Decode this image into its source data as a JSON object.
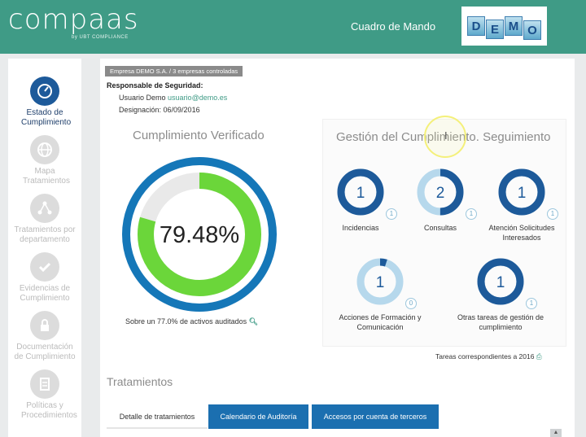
{
  "header": {
    "logo": "compaas",
    "logo_sub": "by UBT COMPLIANCE",
    "title": "Cuadro de Mando",
    "demo_letters": [
      "D",
      "E",
      "M",
      "O"
    ]
  },
  "sidebar": {
    "items": [
      {
        "label": "Estado de Cumplimiento",
        "icon": "gauge-icon",
        "active": true
      },
      {
        "label": "Mapa Tratamientos",
        "icon": "globe-icon",
        "active": false
      },
      {
        "label": "Tratamientos por departamento",
        "icon": "network-icon",
        "active": false
      },
      {
        "label": "Evidencias de Cumplimiento",
        "icon": "check-badge-icon",
        "active": false
      },
      {
        "label": "Documentación de Cumplimiento",
        "icon": "lock-icon",
        "active": false
      },
      {
        "label": "Políticas y Procedimientos",
        "icon": "document-icon",
        "active": false
      }
    ]
  },
  "main": {
    "company_tag": "Empresa DEMO S.A. / 3 empresas controladas",
    "responsible_title": "Responsable de Seguridad:",
    "responsible_user_prefix": "Usuario Demo",
    "responsible_email": "usuario@demo.es",
    "designation": "Designación: 06/09/2016",
    "compliance_title": "Cumplimiento Verificado",
    "compliance_value": "79.48%",
    "compliance_fraction": 0.7948,
    "audited_caption": "Sobre un 77.0% de activos auditados",
    "gestion_title": "Gestión del Cumplimiento. Seguimiento",
    "gestion_items": [
      {
        "label": "Incidencias",
        "value": "1",
        "badge": "1",
        "fill": 1.0
      },
      {
        "label": "Consultas",
        "value": "2",
        "badge": "1",
        "fill": 0.5
      },
      {
        "label": "Atención Solicitudes Interesados",
        "value": "1",
        "badge": "1",
        "fill": 1.0
      },
      {
        "label": "Acciones de Formación y Comunicación",
        "value": "1",
        "badge": "0",
        "fill": 0.05
      },
      {
        "label": "Otras tareas de gestión de cumplimiento",
        "value": "1",
        "badge": "1",
        "fill": 1.0
      }
    ],
    "tareas_caption": "Tareas correspondientes a 2016",
    "tratamientos_title": "Tratamientos",
    "tabs": [
      "Detalle de tratamientos",
      "Calendario de Auditoría",
      "Accesos por cuenta de terceros"
    ]
  },
  "colors": {
    "header": "#3f9b86",
    "donut_dark": "#1d5a9a",
    "donut_light": "#b6d8ec",
    "compliance_green": "#6bd63a",
    "tab_blue": "#1b6fb0"
  }
}
